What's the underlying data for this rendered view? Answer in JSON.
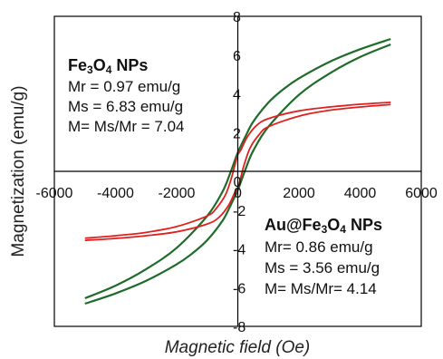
{
  "chart_data": {
    "type": "line",
    "xlabel": "Magnetic field (Oe)",
    "ylabel": "Magnetization (emu/g)",
    "xlim": [
      -6000,
      6000
    ],
    "ylim": [
      -8,
      8
    ],
    "x_ticks": [
      "-6000",
      "-4000",
      "-2000",
      "0",
      "2000",
      "4000",
      "6000"
    ],
    "y_ticks": [
      "8",
      "6",
      "4",
      "2",
      "0",
      "-2",
      "-4",
      "-6",
      "-8"
    ],
    "colors": {
      "fe3o4": "#1f6b2a",
      "au_fe3o4": "#e0201e"
    },
    "annotations": {
      "fe3o4": {
        "title_main": "Fe",
        "title_sub1": "3",
        "title_mid": "O",
        "title_sub2": "4",
        "title_tail": " NPs",
        "line1": "Mr = 0.97 emu/g",
        "line2": "Ms = 6.83 emu/g",
        "line3": "M= Ms/Mr = 7.04"
      },
      "au_fe3o4": {
        "title_main": "Au@Fe",
        "title_sub1": "3",
        "title_mid": "O",
        "title_sub2": "4",
        "title_tail": " NPs",
        "line1": "Mr= 0.86 emu/g",
        "line2": "Ms = 3.56 emu/g",
        "line3": "M= Ms/Mr= 4.14"
      }
    },
    "series": [
      {
        "key": "fe3o4",
        "branches": [
          {
            "x": [
              5000,
              4000,
              3000,
              2000,
              1500,
              1000,
              500,
              250,
              0,
              -100,
              -250,
              -500,
              -1000,
              -2000,
              -3000,
              -4000,
              -5000
            ],
            "y": [
              6.83,
              6.3,
              5.65,
              4.8,
              4.25,
              3.55,
              2.55,
              1.8,
              0.97,
              0.55,
              -0.1,
              -1.05,
              -2.3,
              -3.95,
              -5.05,
              -5.9,
              -6.55
            ]
          },
          {
            "x": [
              -5000,
              -4000,
              -3000,
              -2000,
              -1500,
              -1000,
              -500,
              -250,
              0,
              100,
              250,
              500,
              1000,
              2000,
              3000,
              4000,
              5000
            ],
            "y": [
              -6.83,
              -6.3,
              -5.65,
              -4.8,
              -4.25,
              -3.55,
              -2.55,
              -1.8,
              -0.97,
              -0.55,
              0.1,
              1.05,
              2.3,
              3.95,
              5.05,
              5.9,
              6.55
            ]
          }
        ]
      },
      {
        "key": "au_fe3o4",
        "branches": [
          {
            "x": [
              5000,
              4000,
              3000,
              2000,
              1000,
              600,
              300,
              100,
              0,
              -100,
              -200,
              -400,
              -700,
              -1000,
              -2000,
              -3000,
              -4000,
              -5000
            ],
            "y": [
              3.56,
              3.46,
              3.32,
              3.12,
              2.72,
              2.35,
              1.75,
              1.1,
              0.86,
              0.3,
              -0.3,
              -1.2,
              -1.9,
              -2.3,
              -2.85,
              -3.15,
              -3.32,
              -3.45
            ]
          },
          {
            "x": [
              -5000,
              -4000,
              -3000,
              -2000,
              -1000,
              -600,
              -300,
              -100,
              0,
              100,
              200,
              400,
              700,
              1000,
              2000,
              3000,
              4000,
              5000
            ],
            "y": [
              -3.56,
              -3.46,
              -3.32,
              -3.12,
              -2.72,
              -2.35,
              -1.75,
              -1.1,
              -0.86,
              -0.3,
              0.3,
              1.2,
              1.9,
              2.3,
              2.85,
              3.15,
              3.32,
              3.45
            ]
          }
        ]
      }
    ]
  }
}
